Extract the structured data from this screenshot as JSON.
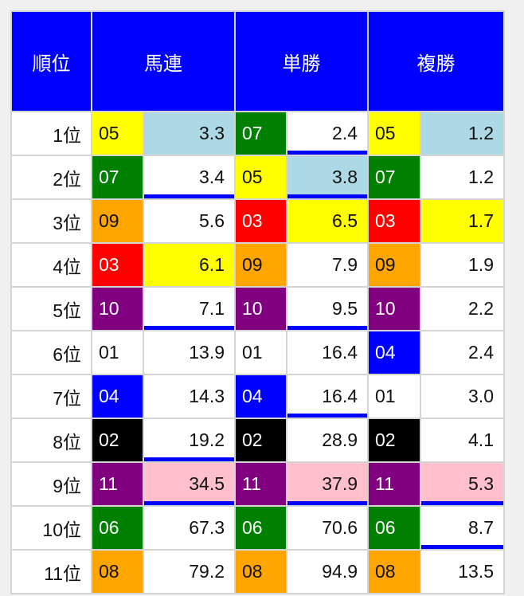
{
  "headers": [
    "順位",
    "馬連",
    "単勝",
    "複勝"
  ],
  "horse_colors": {
    "01": {
      "bg": "#ffffff",
      "fg": "#111111"
    },
    "02": {
      "bg": "#000000",
      "fg": "#ffffff"
    },
    "03": {
      "bg": "#ff0000",
      "fg": "#ffffff"
    },
    "04": {
      "bg": "#0000ff",
      "fg": "#ffffff"
    },
    "05": {
      "bg": "#ffff00",
      "fg": "#111111"
    },
    "06": {
      "bg": "#008000",
      "fg": "#ffffff"
    },
    "07": {
      "bg": "#008000",
      "fg": "#ffffff"
    },
    "08": {
      "bg": "#ffa500",
      "fg": "#111111"
    },
    "09": {
      "bg": "#ffa500",
      "fg": "#111111"
    },
    "10": {
      "bg": "#800080",
      "fg": "#ffffff"
    },
    "11": {
      "bg": "#800080",
      "fg": "#ffffff"
    }
  },
  "underline_color": "#0000ff",
  "rows": [
    {
      "rank": "1位",
      "cells": [
        {
          "num": "05",
          "value": "3.3",
          "bg": "#add8e6",
          "ul": false
        },
        {
          "num": "07",
          "value": "2.4",
          "bg": "#ffffff",
          "ul": true
        },
        {
          "num": "05",
          "value": "1.2",
          "bg": "#add8e6",
          "ul": false
        }
      ]
    },
    {
      "rank": "2位",
      "cells": [
        {
          "num": "07",
          "value": "3.4",
          "bg": "#ffffff",
          "ul": true
        },
        {
          "num": "05",
          "value": "3.8",
          "bg": "#add8e6",
          "ul": true
        },
        {
          "num": "07",
          "value": "1.2",
          "bg": "#ffffff",
          "ul": false
        }
      ]
    },
    {
      "rank": "3位",
      "cells": [
        {
          "num": "09",
          "value": "5.6",
          "bg": "#ffffff",
          "ul": false
        },
        {
          "num": "03",
          "value": "6.5",
          "bg": "#ffff00",
          "ul": false
        },
        {
          "num": "03",
          "value": "1.7",
          "bg": "#ffff00",
          "ul": false
        }
      ]
    },
    {
      "rank": "4位",
      "cells": [
        {
          "num": "03",
          "value": "6.1",
          "bg": "#ffff00",
          "ul": false
        },
        {
          "num": "09",
          "value": "7.9",
          "bg": "#ffffff",
          "ul": false
        },
        {
          "num": "09",
          "value": "1.9",
          "bg": "#ffffff",
          "ul": false
        }
      ]
    },
    {
      "rank": "5位",
      "cells": [
        {
          "num": "10",
          "value": "7.1",
          "bg": "#ffffff",
          "ul": true
        },
        {
          "num": "10",
          "value": "9.5",
          "bg": "#ffffff",
          "ul": true
        },
        {
          "num": "10",
          "value": "2.2",
          "bg": "#ffffff",
          "ul": false
        }
      ]
    },
    {
      "rank": "6位",
      "cells": [
        {
          "num": "01",
          "value": "13.9",
          "bg": "#ffffff",
          "ul": false
        },
        {
          "num": "01",
          "value": "16.4",
          "bg": "#ffffff",
          "ul": false
        },
        {
          "num": "04",
          "value": "2.4",
          "bg": "#ffffff",
          "ul": false
        }
      ]
    },
    {
      "rank": "7位",
      "cells": [
        {
          "num": "04",
          "value": "14.3",
          "bg": "#ffffff",
          "ul": false
        },
        {
          "num": "04",
          "value": "16.4",
          "bg": "#ffffff",
          "ul": true
        },
        {
          "num": "01",
          "value": "3.0",
          "bg": "#ffffff",
          "ul": false
        }
      ]
    },
    {
      "rank": "8位",
      "cells": [
        {
          "num": "02",
          "value": "19.2",
          "bg": "#ffffff",
          "ul": true
        },
        {
          "num": "02",
          "value": "28.9",
          "bg": "#ffffff",
          "ul": false
        },
        {
          "num": "02",
          "value": "4.1",
          "bg": "#ffffff",
          "ul": false
        }
      ]
    },
    {
      "rank": "9位",
      "cells": [
        {
          "num": "11",
          "value": "34.5",
          "bg": "#ffc0cb",
          "ul": true
        },
        {
          "num": "11",
          "value": "37.9",
          "bg": "#ffc0cb",
          "ul": true
        },
        {
          "num": "11",
          "value": "5.3",
          "bg": "#ffc0cb",
          "ul": true
        }
      ]
    },
    {
      "rank": "10位",
      "cells": [
        {
          "num": "06",
          "value": "67.3",
          "bg": "#ffffff",
          "ul": false
        },
        {
          "num": "06",
          "value": "70.6",
          "bg": "#ffffff",
          "ul": false
        },
        {
          "num": "06",
          "value": "8.7",
          "bg": "#ffffff",
          "ul": true
        }
      ]
    },
    {
      "rank": "11位",
      "cells": [
        {
          "num": "08",
          "value": "79.2",
          "bg": "#ffffff",
          "ul": false
        },
        {
          "num": "08",
          "value": "94.9",
          "bg": "#ffffff",
          "ul": false
        },
        {
          "num": "08",
          "value": "13.5",
          "bg": "#ffffff",
          "ul": false
        }
      ]
    }
  ]
}
